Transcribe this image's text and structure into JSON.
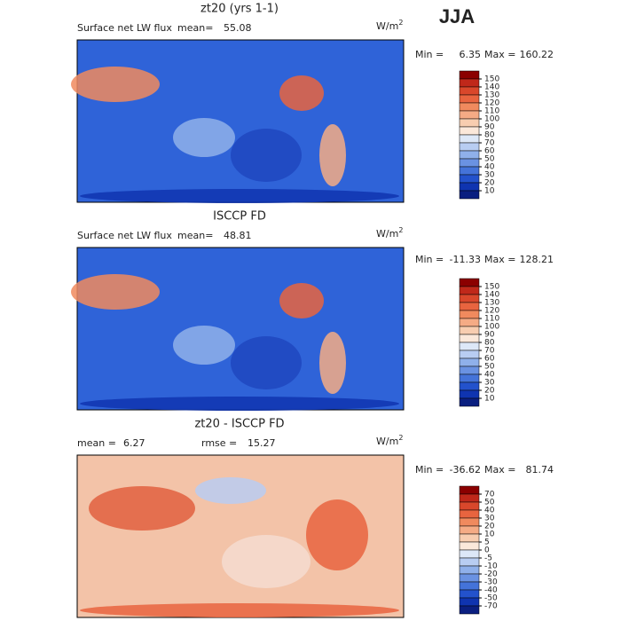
{
  "season": "JJA",
  "panels": [
    {
      "title": "zt20 (yrs 1-1)",
      "field": "Surface net LW flux",
      "stats": [
        {
          "label": "mean=",
          "value": 55.08
        }
      ],
      "units": "W/m",
      "units_exp": "2",
      "min_label": "Min =",
      "min": 6.35,
      "max_label": "Max =",
      "max": 160.22,
      "levels": [
        150,
        140,
        130,
        120,
        110,
        100,
        90,
        80,
        70,
        60,
        50,
        40,
        30,
        20,
        10
      ]
    },
    {
      "title": "ISCCP FD",
      "field": "Surface net LW flux",
      "stats": [
        {
          "label": "mean=",
          "value": 48.81
        }
      ],
      "units": "W/m",
      "units_exp": "2",
      "min_label": "Min =",
      "min": -11.33,
      "max_label": "Max =",
      "max": 128.21,
      "levels": [
        150,
        140,
        130,
        120,
        110,
        100,
        90,
        80,
        70,
        60,
        50,
        40,
        30,
        20,
        10
      ]
    },
    {
      "title": "zt20 - ISCCP FD",
      "field": null,
      "stats": [
        {
          "label": "mean =",
          "value": 6.27
        },
        {
          "label": "rmse =",
          "value": 15.27
        }
      ],
      "units": "W/m",
      "units_exp": "2",
      "min_label": "Min =",
      "min": -36.62,
      "max_label": "Max =",
      "max": 81.74,
      "levels": [
        70,
        50,
        40,
        30,
        20,
        10,
        5,
        0,
        -5,
        -10,
        -20,
        -30,
        -40,
        -50,
        -70
      ]
    }
  ]
}
